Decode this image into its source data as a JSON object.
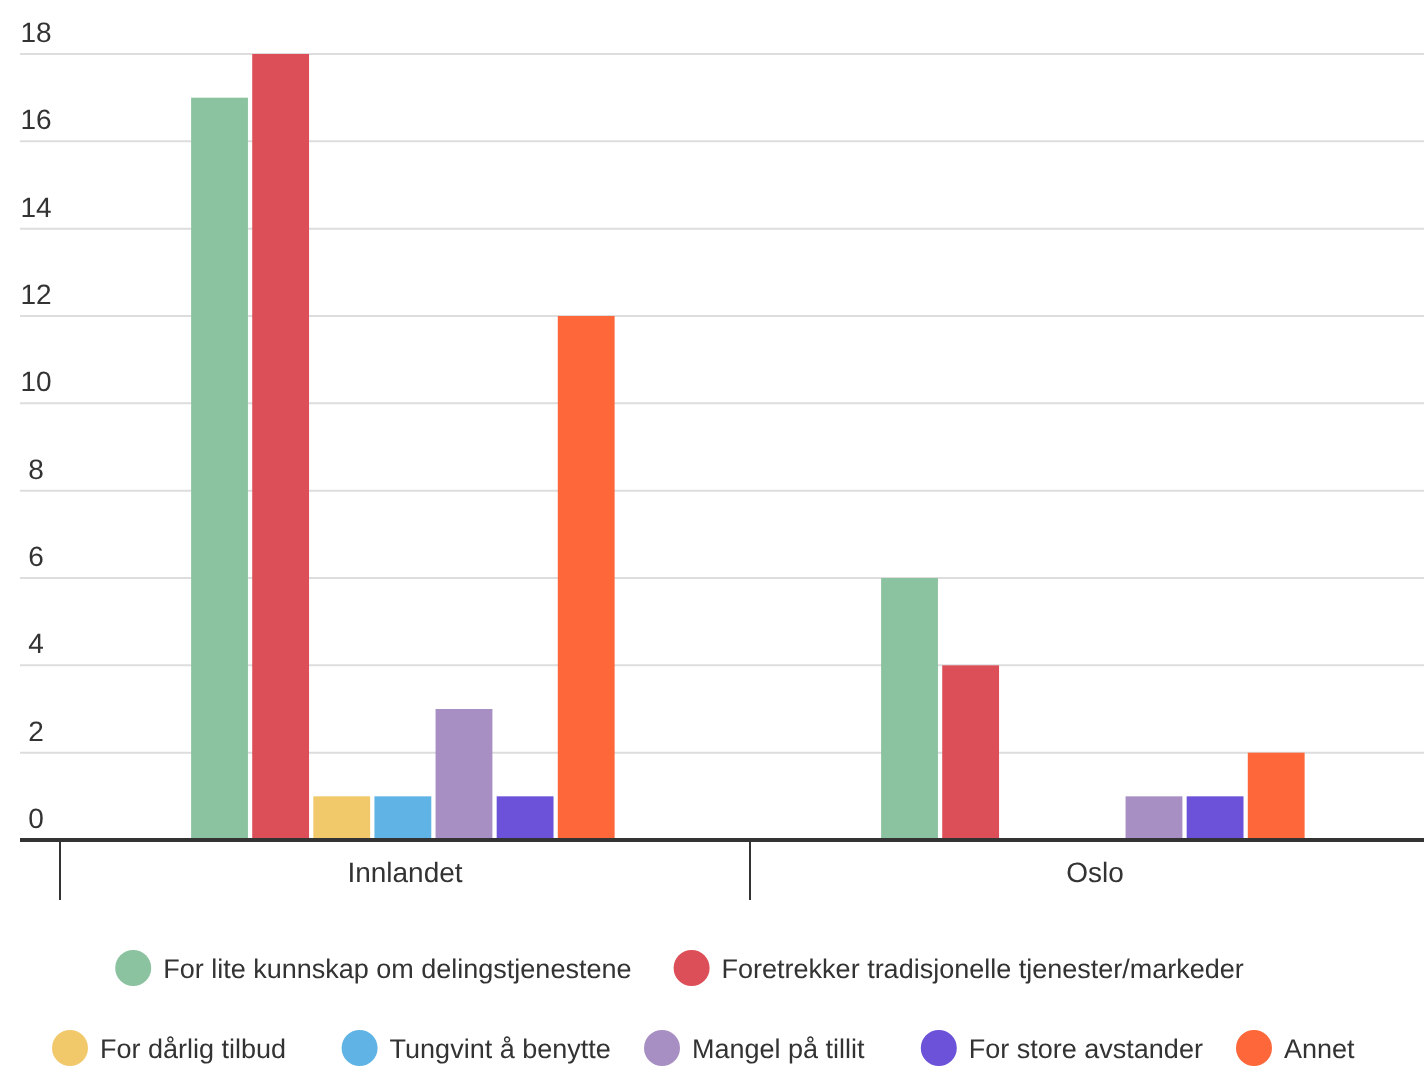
{
  "chart_data": {
    "type": "bar",
    "categories": [
      "Innlandet",
      "Oslo"
    ],
    "series": [
      {
        "name": "For lite kunnskap om delingstjenestene",
        "color": "#8bc2a0",
        "values": [
          17,
          6
        ]
      },
      {
        "name": "Foretrekker tradisjonelle tjenester/markeder",
        "color": "#dc4f59",
        "values": [
          18,
          4
        ]
      },
      {
        "name": "For dårlig tilbud",
        "color": "#f1c96b",
        "values": [
          1,
          0
        ]
      },
      {
        "name": "Tungvint å benytte",
        "color": "#5fb4e5",
        "values": [
          1,
          0
        ]
      },
      {
        "name": "Mangel på tillit",
        "color": "#a88fc3",
        "values": [
          3,
          1
        ]
      },
      {
        "name": "For store avstander",
        "color": "#6b52d9",
        "values": [
          1,
          1
        ]
      },
      {
        "name": "Annet",
        "color": "#fd6739",
        "values": [
          12,
          2
        ]
      }
    ],
    "ylim": [
      0,
      18
    ],
    "yticks": [
      0,
      2,
      4,
      6,
      8,
      10,
      12,
      14,
      16,
      18
    ],
    "grid": "y",
    "legend": "bottom"
  }
}
